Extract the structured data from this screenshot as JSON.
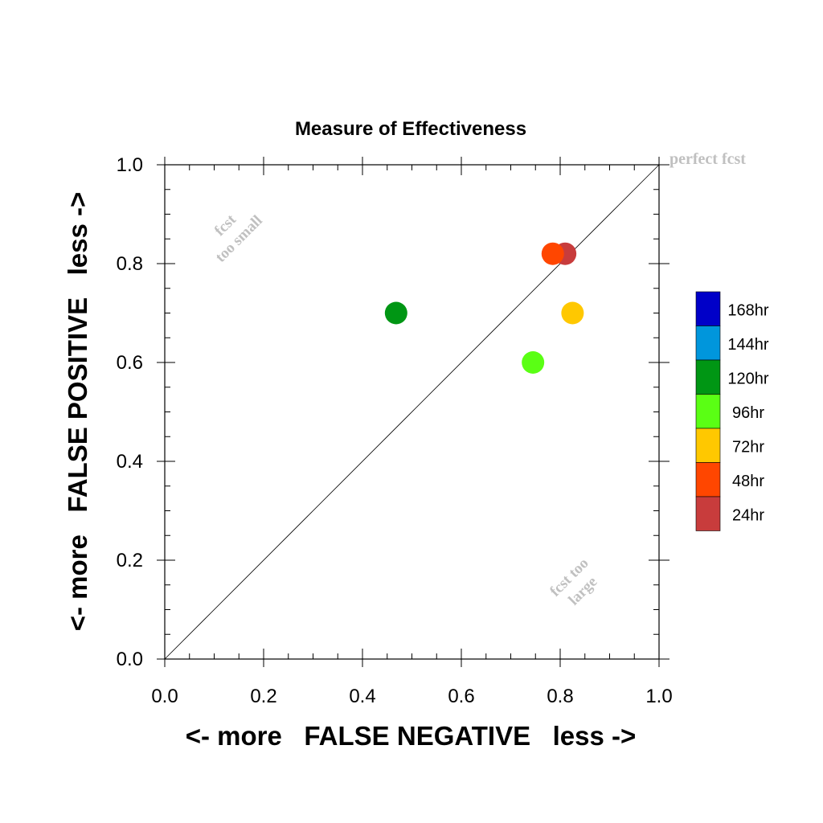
{
  "chart_data": {
    "type": "scatter",
    "title": "Measure of Effectiveness",
    "xlabel": "<- more   FALSE NEGATIVE   less ->",
    "ylabel": "<- more   FALSE POSITIVE   less ->",
    "xlim": [
      0.0,
      1.0
    ],
    "ylim": [
      0.0,
      1.0
    ],
    "xticks": [
      "0.0",
      "0.2",
      "0.4",
      "0.6",
      "0.8",
      "1.0"
    ],
    "yticks": [
      "0.0",
      "0.2",
      "0.4",
      "0.6",
      "0.8",
      "1.0"
    ],
    "grid": false,
    "reference_line": {
      "from": [
        0,
        0
      ],
      "to": [
        1,
        1
      ]
    },
    "annotations": {
      "perfect": "perfect fcst",
      "too_small_line1": "fcst",
      "too_small_line2": "too small",
      "too_large_line1": "fcst too",
      "too_large_line2": "large"
    },
    "legend": {
      "position": "right",
      "entries": [
        {
          "label": "168hr",
          "color": "#0000c8"
        },
        {
          "label": "144hr",
          "color": "#0096dc"
        },
        {
          "label": "120hr",
          "color": "#009614"
        },
        {
          "label": "96hr",
          "color": "#5aff14"
        },
        {
          "label": "72hr",
          "color": "#ffc800"
        },
        {
          "label": "48hr",
          "color": "#ff4600"
        },
        {
          "label": "24hr",
          "color": "#c83c3c"
        }
      ]
    },
    "points": [
      {
        "series": "24hr",
        "x": 0.81,
        "y": 0.82,
        "color": "#c83c3c"
      },
      {
        "series": "48hr",
        "x": 0.785,
        "y": 0.82,
        "color": "#ff4600"
      },
      {
        "series": "72hr",
        "x": 0.825,
        "y": 0.7,
        "color": "#ffc800"
      },
      {
        "series": "96hr",
        "x": 0.745,
        "y": 0.6,
        "color": "#5aff14"
      },
      {
        "series": "120hr",
        "x": 0.468,
        "y": 0.7,
        "color": "#009614"
      }
    ]
  }
}
